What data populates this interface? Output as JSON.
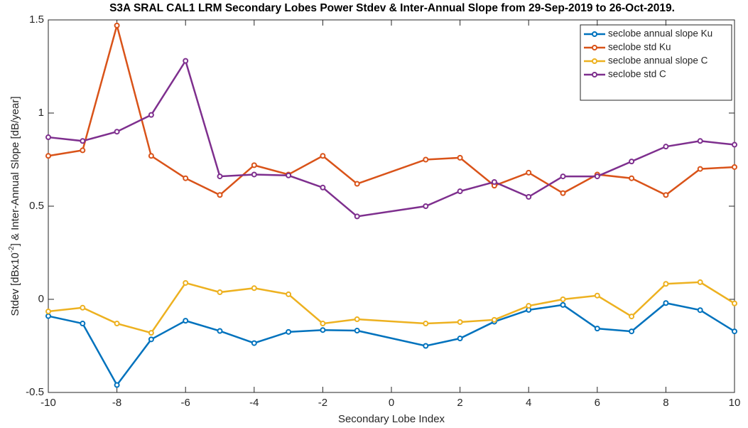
{
  "chart_data": {
    "type": "line",
    "title": "S3A SRAL CAL1 LRM Secondary Lobes Power Stdev & Inter-Annual Slope from 29-Sep-2019 to 26-Oct-2019.",
    "xlabel": "Secondary Lobe Index",
    "ylabel": {
      "before": "Stdev [dBx10",
      "superscript": "-2",
      "after": "] & Inter-Annual Slope [dB/year]"
    },
    "x": [
      -10,
      -9,
      -8,
      -7,
      -6,
      -5,
      -4,
      -3,
      -2,
      -1,
      1,
      2,
      3,
      4,
      5,
      6,
      7,
      8,
      9,
      10
    ],
    "series": [
      {
        "name": "seclobe annual slope Ku",
        "color": "#0072bd",
        "values": [
          -0.09,
          -0.13,
          -0.46,
          -0.215,
          -0.115,
          -0.17,
          -0.235,
          -0.175,
          -0.165,
          -0.168,
          -0.25,
          -0.21,
          -0.12,
          -0.057,
          -0.03,
          -0.157,
          -0.172,
          -0.02,
          -0.058,
          -0.172
        ]
      },
      {
        "name": "seclobe std Ku",
        "color": "#d95319",
        "values": [
          0.77,
          0.8,
          1.47,
          0.77,
          0.65,
          0.56,
          0.72,
          0.67,
          0.77,
          0.62,
          0.75,
          0.76,
          0.61,
          0.68,
          0.57,
          0.67,
          0.65,
          0.56,
          0.7,
          0.71
        ]
      },
      {
        "name": "seclobe annual slope C",
        "color": "#edb120",
        "values": [
          -0.065,
          -0.045,
          -0.13,
          -0.18,
          0.088,
          0.038,
          0.06,
          0.027,
          -0.13,
          -0.107,
          -0.13,
          -0.122,
          -0.11,
          -0.035,
          0.0,
          0.02,
          -0.092,
          0.083,
          0.092,
          -0.022
        ]
      },
      {
        "name": "seclobe std C",
        "color": "#7e2f8e",
        "values": [
          0.87,
          0.85,
          0.9,
          0.99,
          1.28,
          0.66,
          0.67,
          0.665,
          0.6,
          0.445,
          0.5,
          0.58,
          0.63,
          0.55,
          0.66,
          0.66,
          0.74,
          0.82,
          0.85,
          0.83
        ]
      }
    ],
    "xlim": [
      -10,
      10
    ],
    "xticks": [
      -10,
      -8,
      -6,
      -4,
      -2,
      0,
      2,
      4,
      6,
      8,
      10
    ],
    "ylim": [
      -0.5,
      1.5
    ],
    "yticks": [
      -0.5,
      0,
      0.5,
      1,
      1.5
    ],
    "grid": false,
    "legend": "top-right"
  }
}
